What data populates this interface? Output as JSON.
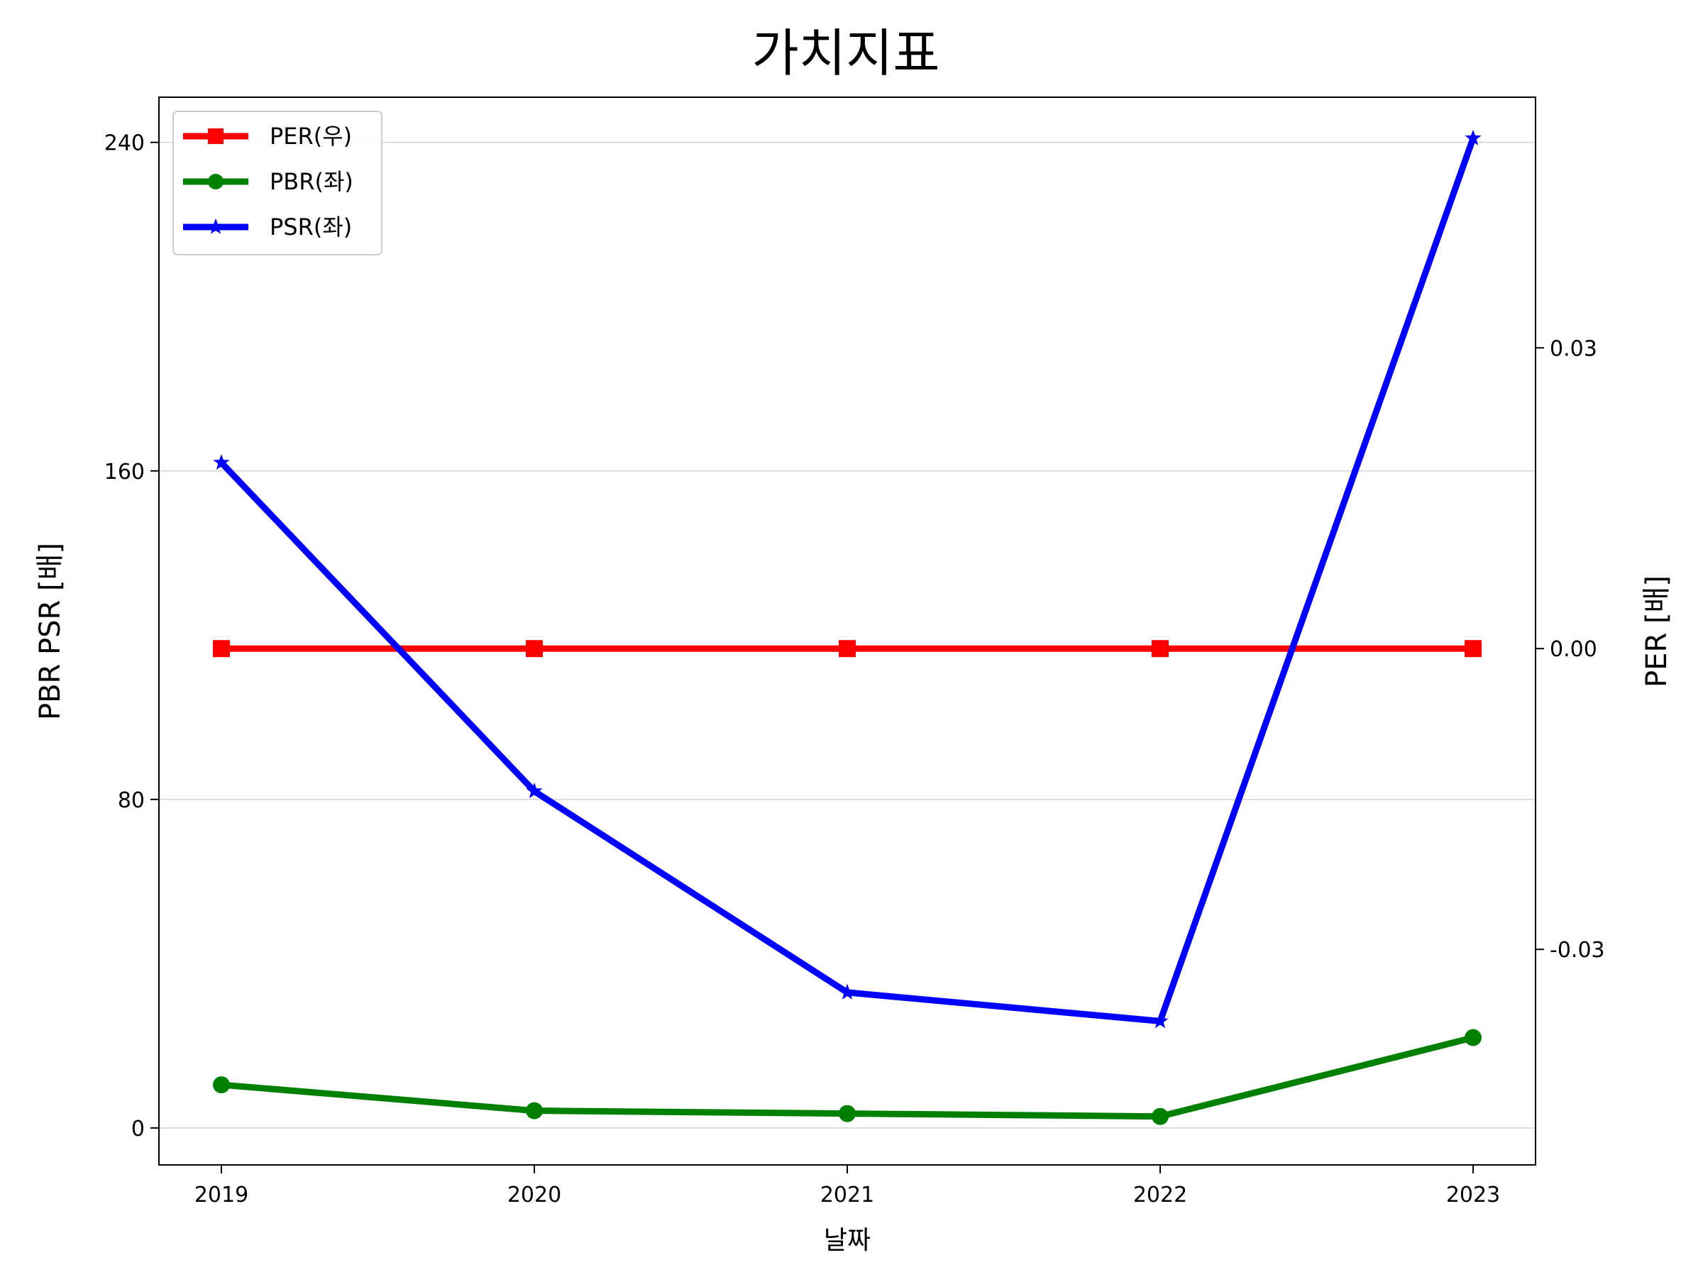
{
  "chart_data": {
    "type": "line",
    "title": "가치지표",
    "xlabel": "날짜",
    "ylabel_left": "PBR PSR [배]",
    "ylabel_right": "PER [배]",
    "categories": [
      "2019",
      "2020",
      "2021",
      "2022",
      "2023"
    ],
    "y_left": {
      "ticks": [
        "0",
        "80",
        "160",
        "240"
      ],
      "tick_values": [
        0,
        80,
        160,
        240
      ],
      "range": [
        -9,
        251
      ]
    },
    "y_right": {
      "ticks": [
        "-0.03",
        "0.00",
        "0.03"
      ],
      "tick_values": [
        -0.03,
        0.0,
        0.03
      ],
      "range": [
        -0.0515,
        0.055
      ]
    },
    "grid": "horizontal",
    "legend_position": "top-left",
    "series": [
      {
        "name": "PER(우)",
        "axis": "right",
        "color": "#ff0000",
        "marker": "square",
        "values": [
          0,
          0,
          0,
          0,
          0
        ]
      },
      {
        "name": "PBR(좌)",
        "axis": "left",
        "color": "#008000",
        "marker": "circle",
        "values": [
          10.5,
          4.2,
          3.5,
          2.8,
          22.0
        ]
      },
      {
        "name": "PSR(좌)",
        "axis": "left",
        "color": "#0000ff",
        "marker": "star",
        "values": [
          162,
          82,
          33,
          26,
          241
        ]
      }
    ],
    "colors": {
      "left_label": "#008000",
      "right_label": "#ff0000"
    }
  }
}
